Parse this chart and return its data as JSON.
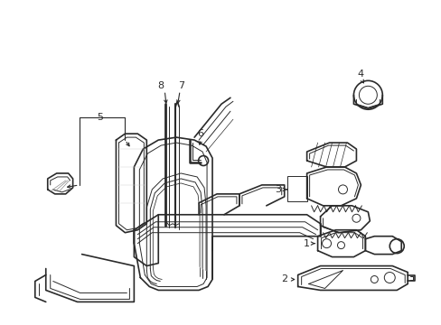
{
  "bg_color": "#ffffff",
  "line_color": "#2a2a2a",
  "fig_width": 4.89,
  "fig_height": 3.6,
  "dpi": 100,
  "label_fontsize": 8,
  "label_fontsize_small": 7
}
